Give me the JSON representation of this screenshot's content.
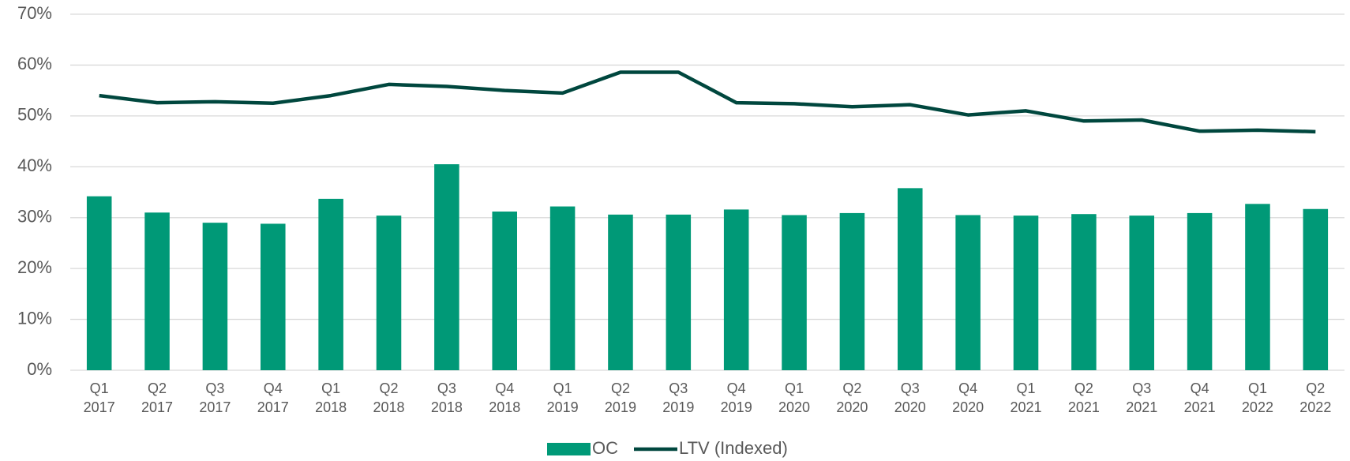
{
  "chart_data": {
    "type": "bar_line",
    "categories": [
      "Q1 2017",
      "Q2 2017",
      "Q3 2017",
      "Q4 2017",
      "Q1 2018",
      "Q2 2018",
      "Q3 2018",
      "Q4 2018",
      "Q1 2019",
      "Q2 2019",
      "Q3 2019",
      "Q4 2019",
      "Q1 2020",
      "Q2 2020",
      "Q3 2020",
      "Q4 2020",
      "Q1 2021",
      "Q2 2021",
      "Q3 2021",
      "Q4 2021",
      "Q1 2022",
      "Q2 2022"
    ],
    "series": [
      {
        "name": "OC",
        "kind": "bar",
        "color": "#009977",
        "values": [
          34.2,
          31.0,
          29.0,
          28.8,
          33.7,
          30.4,
          40.5,
          31.2,
          32.2,
          30.6,
          30.6,
          31.6,
          30.5,
          30.9,
          35.8,
          30.5,
          30.4,
          30.7,
          30.4,
          30.9,
          32.7,
          31.7
        ]
      },
      {
        "name": "LTV (Indexed)",
        "kind": "line",
        "color": "#00473e",
        "values": [
          54.0,
          52.6,
          52.8,
          52.5,
          54.0,
          56.2,
          55.8,
          55.0,
          54.5,
          58.6,
          58.6,
          52.6,
          52.4,
          51.8,
          52.2,
          50.2,
          51.0,
          49.0,
          49.2,
          47.0,
          47.2,
          46.9
        ]
      }
    ],
    "ylim": [
      0,
      70
    ],
    "yticks": [
      {
        "value": 0,
        "label": "0%"
      },
      {
        "value": 10,
        "label": "10%"
      },
      {
        "value": 20,
        "label": "20%"
      },
      {
        "value": 30,
        "label": "30%"
      },
      {
        "value": 40,
        "label": "40%"
      },
      {
        "value": 50,
        "label": "50%"
      },
      {
        "value": 60,
        "label": "60%"
      },
      {
        "value": 70,
        "label": "70%"
      }
    ],
    "grid": true,
    "legend": "bottom"
  }
}
